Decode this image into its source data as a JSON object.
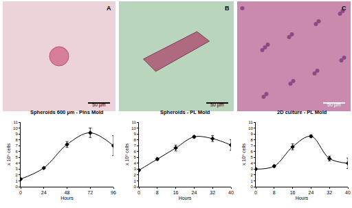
{
  "chart_data": [
    {
      "type": "line",
      "title": "Spheroids 600 µm - Pins Mold",
      "xlabel": "Hours",
      "ylabel": "x 10⁵ cells",
      "x": [
        0,
        24,
        48,
        72,
        96
      ],
      "values": [
        1.3,
        3.2,
        7.2,
        9.2,
        7.0
      ],
      "error": [
        0.1,
        0.1,
        0.5,
        0.8,
        1.7
      ],
      "xlim": [
        0,
        96
      ],
      "xticks": [
        0,
        24,
        48,
        72,
        96
      ],
      "ylim": [
        0,
        11
      ],
      "yticks": [
        0,
        1,
        2,
        3,
        4,
        5,
        6,
        7,
        8,
        9,
        10,
        11
      ],
      "color": "#000000",
      "marker": "diamond",
      "line_style": "smooth",
      "grid": false
    },
    {
      "type": "line",
      "title": "Spheroids - PL Mold",
      "xlabel": "Hours",
      "ylabel": "x 10⁵ cells",
      "x": [
        0,
        8,
        16,
        24,
        32,
        40
      ],
      "values": [
        2.8,
        4.7,
        6.6,
        8.5,
        8.2,
        7.1
      ],
      "error": [
        0.1,
        0.2,
        0.5,
        0.2,
        0.5,
        0.9
      ],
      "xlim": [
        0,
        40
      ],
      "xticks": [
        0,
        8,
        16,
        24,
        32,
        40
      ],
      "ylim": [
        0,
        11
      ],
      "yticks": [
        0,
        1,
        2,
        3,
        4,
        5,
        6,
        7,
        8,
        9,
        10,
        11
      ],
      "color": "#000000",
      "marker": "diamond",
      "line_style": "smooth",
      "grid": false
    },
    {
      "type": "line",
      "title": "2D culture - PL Mold",
      "xlabel": "Hours",
      "ylabel": "x 10⁵ cells",
      "x": [
        0,
        8,
        16,
        24,
        32,
        40
      ],
      "values": [
        3.0,
        3.5,
        6.8,
        8.6,
        4.8,
        4.0
      ],
      "error": [
        0.1,
        0.2,
        0.5,
        0.2,
        0.4,
        0.9
      ],
      "xlim": [
        0,
        40
      ],
      "xticks": [
        0,
        8,
        16,
        24,
        32,
        40
      ],
      "ylim": [
        0,
        11
      ],
      "yticks": [
        0,
        1,
        2,
        3,
        4,
        5,
        6,
        7,
        8,
        9,
        10,
        11
      ],
      "color": "#000000",
      "marker": "diamond",
      "line_style": "smooth",
      "grid": false
    }
  ],
  "image_panels": [
    {
      "label": "A",
      "scale_bar": "50 µm"
    },
    {
      "label": "B",
      "scale_bar": "50 µm"
    },
    {
      "label": "C",
      "scale_bar": "50 µm"
    }
  ]
}
